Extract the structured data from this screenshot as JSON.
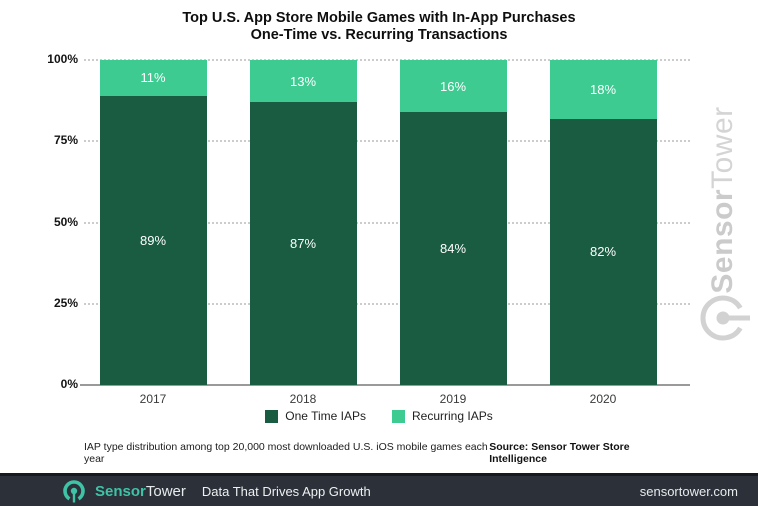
{
  "title": {
    "line1": "Top U.S. App Store Mobile Games with In-App Purchases",
    "line2": "One-Time vs. Recurring Transactions"
  },
  "chart_data": {
    "type": "bar",
    "stacked": true,
    "categories": [
      "2017",
      "2018",
      "2019",
      "2020"
    ],
    "series": [
      {
        "name": "One Time IAPs",
        "color": "#1a5c42",
        "values": [
          89,
          87,
          84,
          82
        ]
      },
      {
        "name": "Recurring IAPs",
        "color": "#3ecb92",
        "values": [
          11,
          13,
          16,
          18
        ]
      }
    ],
    "ylim": [
      0,
      100
    ],
    "yticks": [
      "0%",
      "25%",
      "50%",
      "75%",
      "100%"
    ],
    "grid": "horizontal dotted",
    "legend_position": "bottom",
    "bar_label_format": "percent",
    "colors": {
      "grid": "#cccccc",
      "axis_line": "#9a9a9a"
    }
  },
  "footnote": "IAP type distribution among top 20,000 most downloaded U.S. iOS mobile games each year",
  "source": "Source: Sensor Tower Store Intelligence",
  "watermark": {
    "brand_bold": "Sensor",
    "brand_light": "Tower"
  },
  "footer": {
    "brand_bold": "Sensor",
    "brand_light": "Tower",
    "tagline": "Data That Drives App Growth",
    "url": "sensortower.com",
    "bg_color": "#2b3039",
    "accent_color": "#3fc3a6"
  }
}
